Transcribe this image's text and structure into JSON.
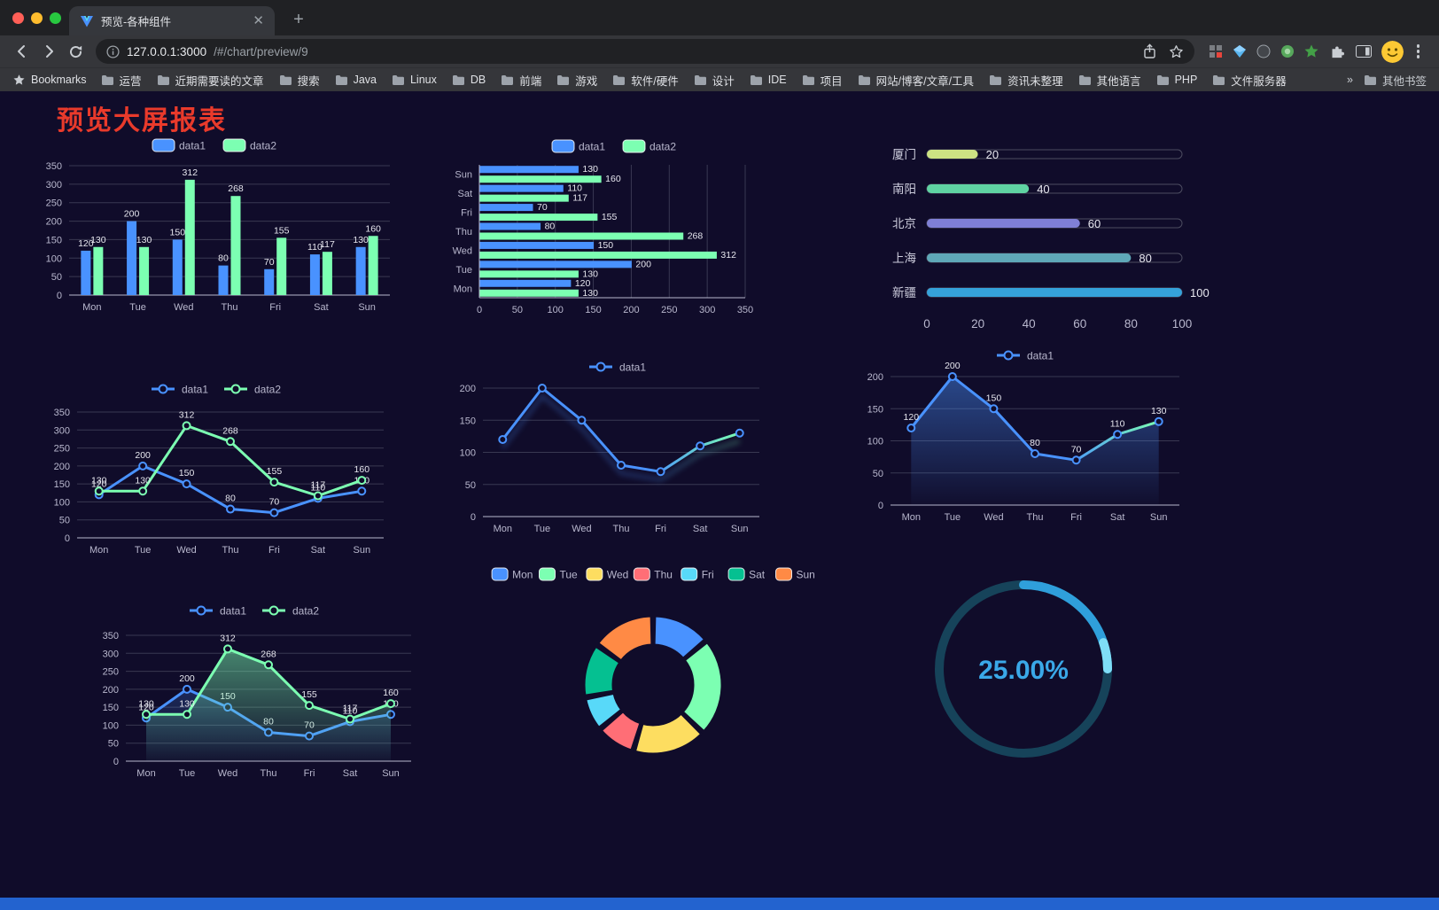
{
  "browser": {
    "tab_title": "预览-各种组件",
    "url_host": "127.0.0.1:3000",
    "url_path": "/#/chart/preview/9",
    "bookmarks_bar": {
      "label": "Bookmarks",
      "folders": [
        "运营",
        "近期需要读的文章",
        "搜索",
        "Java",
        "Linux",
        "DB",
        "前端",
        "游戏",
        "软件/硬件",
        "设计",
        "IDE",
        "项目",
        "网站/博客/文章/工具",
        "资讯未整理",
        "其他语言",
        "PHP",
        "文件服务器"
      ],
      "overflow": "»",
      "other": "其他书签"
    }
  },
  "page": {
    "title": "预览大屏报表",
    "title_color": "#e93a2b",
    "background": "#100c2a",
    "footer_color": "#2363cf"
  },
  "chart_data": [
    {
      "id": "bar1",
      "type": "bar",
      "categories": [
        "Mon",
        "Tue",
        "Wed",
        "Thu",
        "Fri",
        "Sat",
        "Sun"
      ],
      "series": [
        {
          "name": "data1",
          "color": "#4992ff",
          "values": [
            120,
            200,
            150,
            80,
            70,
            110,
            130
          ]
        },
        {
          "name": "data2",
          "color": "#7cffb2",
          "values": [
            130,
            130,
            312,
            268,
            155,
            117,
            160
          ]
        }
      ],
      "ylim": [
        0,
        350
      ],
      "yticks": [
        0,
        50,
        100,
        150,
        200,
        250,
        300,
        350
      ],
      "legend_position": "top",
      "show_labels": true
    },
    {
      "id": "hbar1",
      "type": "hbar",
      "categories": [
        "Mon",
        "Tue",
        "Wed",
        "Thu",
        "Fri",
        "Sat",
        "Sun"
      ],
      "series": [
        {
          "name": "data1",
          "color": "#4992ff",
          "values": [
            120,
            200,
            150,
            80,
            70,
            110,
            130
          ]
        },
        {
          "name": "data2",
          "color": "#7cffb2",
          "values": [
            130,
            130,
            312,
            268,
            155,
            117,
            160
          ]
        }
      ],
      "xlim": [
        0,
        350
      ],
      "xticks": [
        0,
        50,
        100,
        150,
        200,
        250,
        300,
        350
      ],
      "legend_position": "top",
      "show_labels": true
    },
    {
      "id": "progress1",
      "type": "progress",
      "items": [
        {
          "label": "厦门",
          "value": 20,
          "color": "#cde383"
        },
        {
          "label": "南阳",
          "value": 40,
          "color": "#5fd3a2"
        },
        {
          "label": "北京",
          "value": 60,
          "color": "#7f7fd6"
        },
        {
          "label": "上海",
          "value": 80,
          "color": "#5fa8b8"
        },
        {
          "label": "新疆",
          "value": 100,
          "color": "#35a2da"
        }
      ],
      "axis_ticks": [
        0,
        20,
        40,
        60,
        80,
        100
      ]
    },
    {
      "id": "line2",
      "type": "line",
      "categories": [
        "Mon",
        "Tue",
        "Wed",
        "Thu",
        "Fri",
        "Sat",
        "Sun"
      ],
      "series": [
        {
          "name": "data1",
          "color": "#4992ff",
          "values": [
            120,
            200,
            150,
            80,
            70,
            110,
            130
          ]
        },
        {
          "name": "data2",
          "color": "#7cffb2",
          "values": [
            130,
            130,
            312,
            268,
            155,
            117,
            160
          ]
        }
      ],
      "ylim": [
        0,
        350
      ],
      "yticks": [
        0,
        50,
        100,
        150,
        200,
        250,
        300,
        350
      ],
      "legend_position": "top",
      "show_labels": true
    },
    {
      "id": "line1",
      "type": "line",
      "categories": [
        "Mon",
        "Tue",
        "Wed",
        "Thu",
        "Fri",
        "Sat",
        "Sun"
      ],
      "series": [
        {
          "name": "data1",
          "color": "#4992ff",
          "gradient_to": "#7cffb2",
          "values": [
            120,
            200,
            150,
            80,
            70,
            110,
            130
          ]
        }
      ],
      "ylim": [
        0,
        200
      ],
      "yticks": [
        0,
        50,
        100,
        150,
        200
      ],
      "legend_position": "top",
      "show_labels": false,
      "trail": true
    },
    {
      "id": "area1",
      "type": "line",
      "categories": [
        "Mon",
        "Tue",
        "Wed",
        "Thu",
        "Fri",
        "Sat",
        "Sun"
      ],
      "series": [
        {
          "name": "data1",
          "color": "#4992ff",
          "gradient_to": "#7cffb2",
          "area": true,
          "area_opacity": 0.45,
          "values": [
            120,
            200,
            150,
            80,
            70,
            110,
            130
          ]
        }
      ],
      "ylim": [
        0,
        200
      ],
      "yticks": [
        0,
        50,
        100,
        150,
        200
      ],
      "legend_position": "top",
      "show_labels": true
    },
    {
      "id": "area2",
      "type": "line",
      "categories": [
        "Mon",
        "Tue",
        "Wed",
        "Thu",
        "Fri",
        "Sat",
        "Sun"
      ],
      "series": [
        {
          "name": "data1",
          "color": "#4992ff",
          "area": true,
          "area_opacity": 0.22,
          "values": [
            120,
            200,
            150,
            80,
            70,
            110,
            130
          ]
        },
        {
          "name": "data2",
          "color": "#7cffb2",
          "area": true,
          "area_opacity": 0.5,
          "values": [
            130,
            130,
            312,
            268,
            155,
            117,
            160
          ]
        }
      ],
      "ylim": [
        0,
        350
      ],
      "yticks": [
        0,
        50,
        100,
        150,
        200,
        250,
        300,
        350
      ],
      "legend_position": "top",
      "show_labels": true
    },
    {
      "id": "donut1",
      "type": "donut",
      "categories": [
        "Mon",
        "Tue",
        "Wed",
        "Thu",
        "Fri",
        "Sat",
        "Sun"
      ],
      "values": [
        120,
        200,
        150,
        80,
        70,
        110,
        130
      ],
      "colors": [
        "#4992ff",
        "#7cffb2",
        "#fddd60",
        "#ff6e76",
        "#58d9f9",
        "#05c091",
        "#ff8a45"
      ],
      "legend_position": "top"
    },
    {
      "id": "gauge1",
      "type": "gauge",
      "value": 25,
      "value_text": "25.00%",
      "color": "#2f9fdb",
      "tail_color": "#7fdef7",
      "track_color": "#16435a",
      "text_color": "#3aa8e8"
    }
  ]
}
